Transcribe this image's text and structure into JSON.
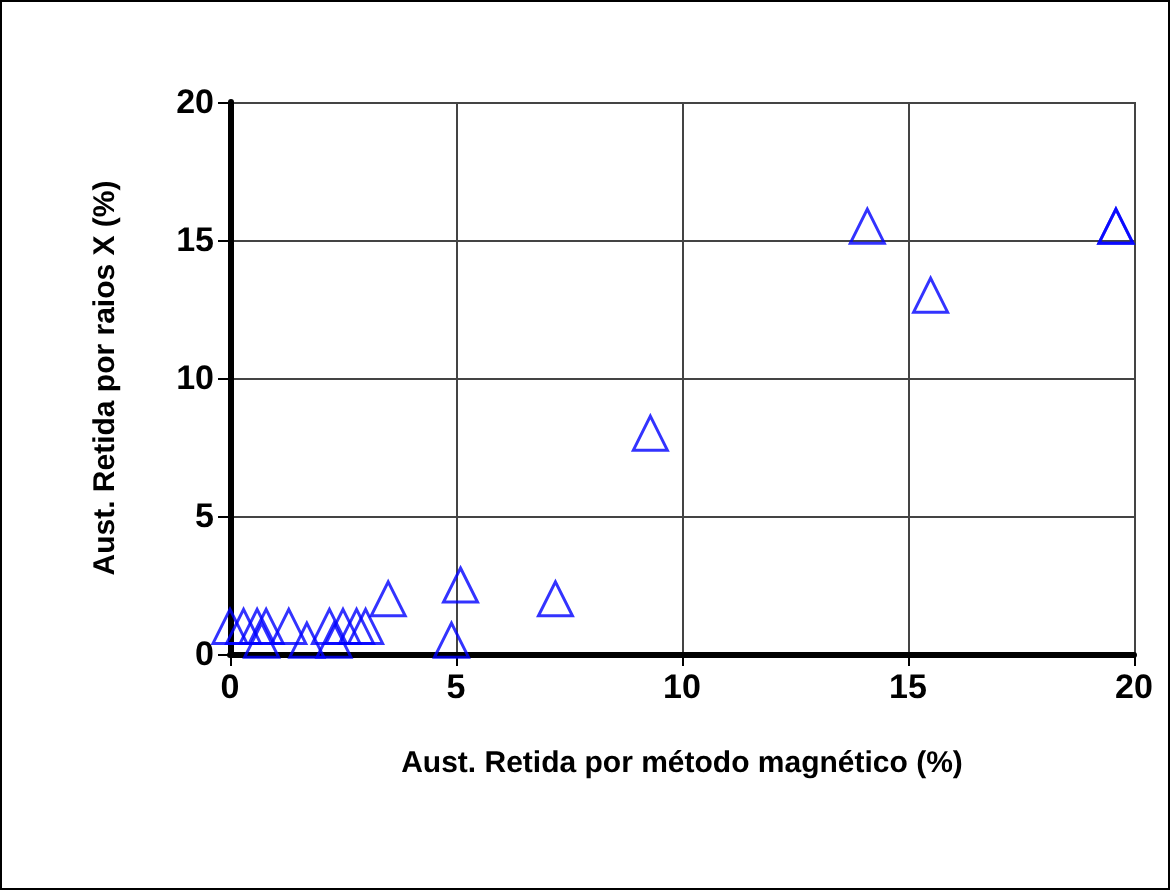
{
  "chart_data": {
    "type": "scatter",
    "xlabel": "Aust. Retida por método magnético (%)",
    "ylabel": "Aust. Retida por raios X (%)",
    "x": [
      0,
      0.3,
      0.6,
      0.8,
      1.3,
      2.2,
      2.5,
      2.8,
      3.0,
      0.7,
      1.7,
      2.3,
      4.9,
      3.5,
      7.2,
      5.1,
      9.3,
      14.1,
      15.5,
      19.6,
      19.6
    ],
    "series": [
      {
        "color": "#0000ff",
        "values": [
          1,
          1,
          1,
          1,
          1,
          1,
          1,
          1,
          1,
          0.5,
          0.5,
          0.5,
          0.5,
          2,
          2,
          2.5,
          8,
          15.5,
          13,
          15.5,
          15.5
        ]
      }
    ],
    "xlim": [
      0,
      20
    ],
    "xticks": [
      0,
      5,
      10,
      15,
      20
    ],
    "ylim": [
      0,
      20
    ],
    "yticks": [
      0,
      5,
      10,
      15,
      20
    ],
    "grid": true,
    "marker": "triangle"
  }
}
